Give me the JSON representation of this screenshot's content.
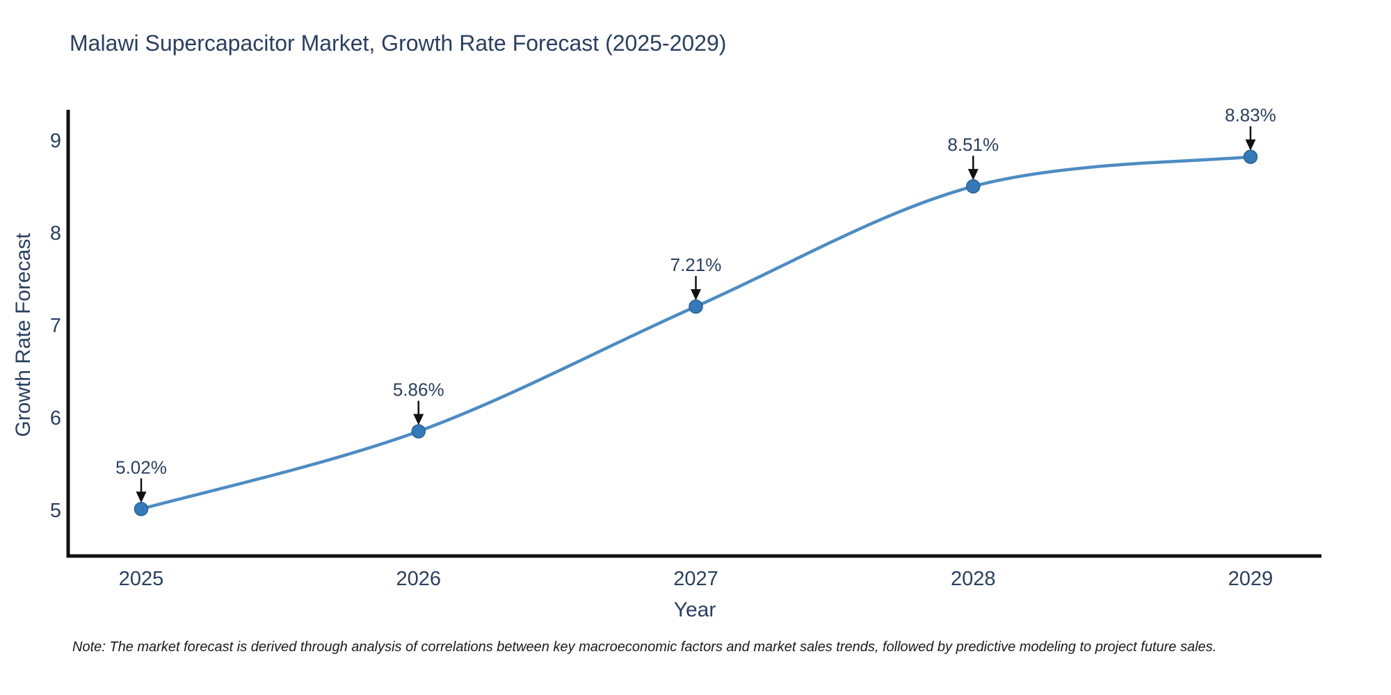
{
  "chart_data": {
    "type": "line",
    "title": "Malawi Supercapacitor Market, Growth Rate Forecast (2025-2029)",
    "xlabel": "Year",
    "ylabel": "Growth Rate Forecast",
    "x": [
      2025,
      2026,
      2027,
      2028,
      2029
    ],
    "x_tick_labels": [
      "2025",
      "2026",
      "2027",
      "2028",
      "2029"
    ],
    "values": [
      5.02,
      5.86,
      7.21,
      8.51,
      8.83
    ],
    "unit": "%",
    "point_labels": [
      "5.02%",
      "5.86%",
      "7.21%",
      "8.51%",
      "8.83%"
    ],
    "y_ticks": [
      5,
      6,
      7,
      8,
      9
    ],
    "ylim": [
      4.5,
      9.34
    ],
    "xlim": [
      2024.73,
      2029.26
    ],
    "line_shape": "spline",
    "grid": false,
    "legend_position": "none",
    "annotation_style": "label-with-down-arrow",
    "note": "Note: The market forecast is derived through analysis of correlations between key macroeconomic factors and market sales trends, followed by predictive modeling to project future sales.",
    "colors": {
      "line": "#4e8bc2",
      "marker_fill": "#3579b8",
      "marker_edge": "#2a5f8f",
      "axis_line": "#111111",
      "tick_text": "#2a3f5f",
      "title_text": "#2a3f5f",
      "annotation_text": "#2a3f5f",
      "annotation_arrow": "#111111",
      "note_text": "#1a1a1a",
      "background": "#ffffff"
    }
  }
}
